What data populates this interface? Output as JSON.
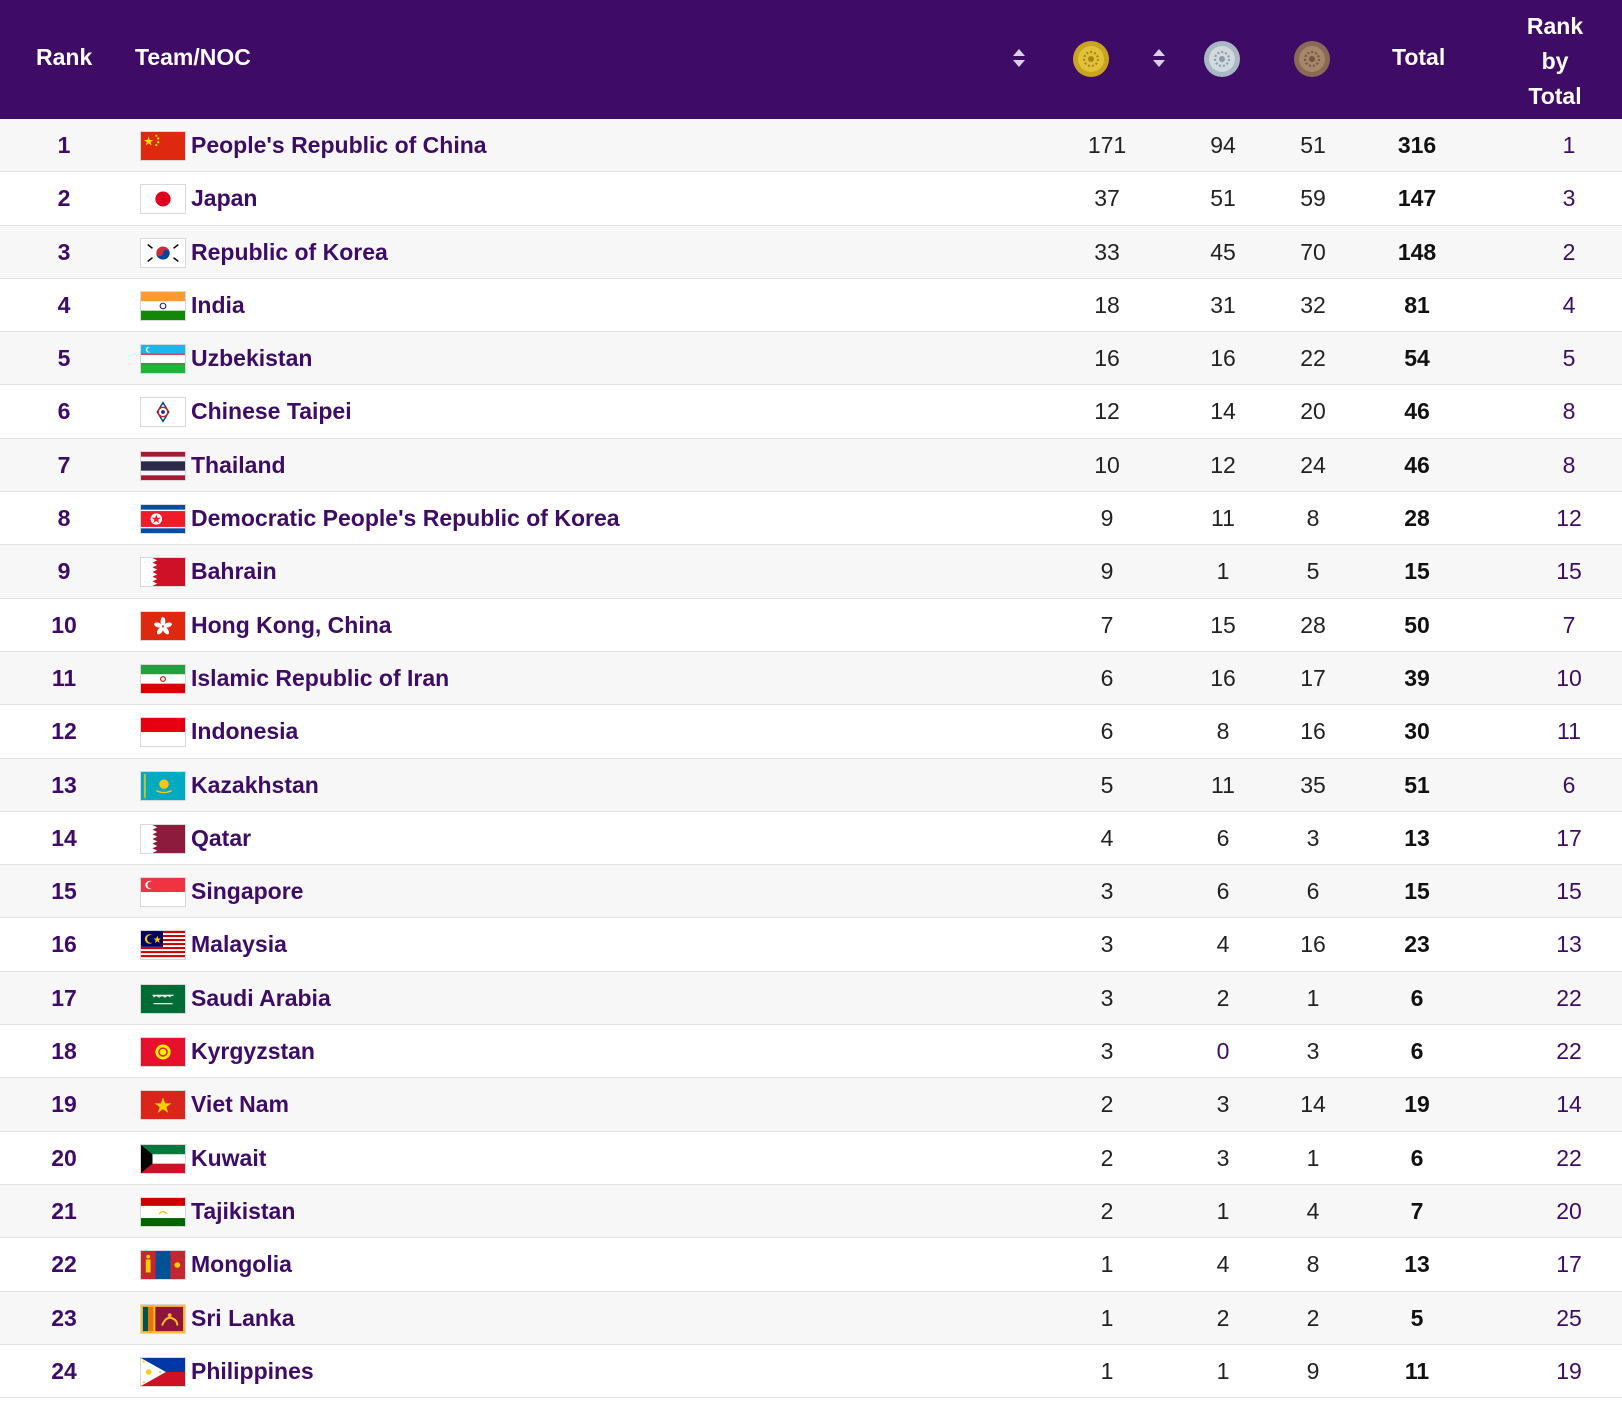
{
  "header": {
    "rank": "Rank",
    "team": "Team/NOC",
    "total": "Total",
    "rank_by_total": [
      "Rank",
      "by",
      "Total"
    ],
    "gold_icon": "gold-medal-icon",
    "silver_icon": "silver-medal-icon",
    "bronze_icon": "bronze-medal-icon",
    "sort_icon": "sort-icon"
  },
  "colors": {
    "header_bg": "#3e0c66",
    "accent_text": "#3e0c66",
    "row_alt": "#f7f7f7"
  },
  "rows": [
    {
      "rank": "1",
      "flag": "flag-china",
      "name": "People's Republic of China",
      "gold": "171",
      "silver": "94",
      "bronze": "51",
      "total": "316",
      "rank_by_total": "1"
    },
    {
      "rank": "2",
      "flag": "flag-japan",
      "name": "Japan",
      "gold": "37",
      "silver": "51",
      "bronze": "59",
      "total": "147",
      "rank_by_total": "3"
    },
    {
      "rank": "3",
      "flag": "flag-korea",
      "name": "Republic of Korea",
      "gold": "33",
      "silver": "45",
      "bronze": "70",
      "total": "148",
      "rank_by_total": "2"
    },
    {
      "rank": "4",
      "flag": "flag-india",
      "name": "India",
      "gold": "18",
      "silver": "31",
      "bronze": "32",
      "total": "81",
      "rank_by_total": "4"
    },
    {
      "rank": "5",
      "flag": "flag-uzbekistan",
      "name": "Uzbekistan",
      "gold": "16",
      "silver": "16",
      "bronze": "22",
      "total": "54",
      "rank_by_total": "5"
    },
    {
      "rank": "6",
      "flag": "flag-chinese-taipei",
      "name": "Chinese Taipei",
      "gold": "12",
      "silver": "14",
      "bronze": "20",
      "total": "46",
      "rank_by_total": "8"
    },
    {
      "rank": "7",
      "flag": "flag-thailand",
      "name": "Thailand",
      "gold": "10",
      "silver": "12",
      "bronze": "24",
      "total": "46",
      "rank_by_total": "8"
    },
    {
      "rank": "8",
      "flag": "flag-dpr-korea",
      "name": "Democratic People's Republic of Korea",
      "gold": "9",
      "silver": "11",
      "bronze": "8",
      "total": "28",
      "rank_by_total": "12"
    },
    {
      "rank": "9",
      "flag": "flag-bahrain",
      "name": "Bahrain",
      "gold": "9",
      "silver": "1",
      "bronze": "5",
      "total": "15",
      "rank_by_total": "15"
    },
    {
      "rank": "10",
      "flag": "flag-hong-kong",
      "name": "Hong Kong, China",
      "gold": "7",
      "silver": "15",
      "bronze": "28",
      "total": "50",
      "rank_by_total": "7"
    },
    {
      "rank": "11",
      "flag": "flag-iran",
      "name": "Islamic Republic of Iran",
      "gold": "6",
      "silver": "16",
      "bronze": "17",
      "total": "39",
      "rank_by_total": "10"
    },
    {
      "rank": "12",
      "flag": "flag-indonesia",
      "name": "Indonesia",
      "gold": "6",
      "silver": "8",
      "bronze": "16",
      "total": "30",
      "rank_by_total": "11"
    },
    {
      "rank": "13",
      "flag": "flag-kazakhstan",
      "name": "Kazakhstan",
      "gold": "5",
      "silver": "11",
      "bronze": "35",
      "total": "51",
      "rank_by_total": "6"
    },
    {
      "rank": "14",
      "flag": "flag-qatar",
      "name": "Qatar",
      "gold": "4",
      "silver": "6",
      "bronze": "3",
      "total": "13",
      "rank_by_total": "17"
    },
    {
      "rank": "15",
      "flag": "flag-singapore",
      "name": "Singapore",
      "gold": "3",
      "silver": "6",
      "bronze": "6",
      "total": "15",
      "rank_by_total": "15"
    },
    {
      "rank": "16",
      "flag": "flag-malaysia",
      "name": "Malaysia",
      "gold": "3",
      "silver": "4",
      "bronze": "16",
      "total": "23",
      "rank_by_total": "13"
    },
    {
      "rank": "17",
      "flag": "flag-saudi-arabia",
      "name": "Saudi Arabia",
      "gold": "3",
      "silver": "2",
      "bronze": "1",
      "total": "6",
      "rank_by_total": "22"
    },
    {
      "rank": "18",
      "flag": "flag-kyrgyzstan",
      "name": "Kyrgyzstan",
      "gold": "3",
      "silver": "0",
      "bronze": "3",
      "total": "6",
      "rank_by_total": "22"
    },
    {
      "rank": "19",
      "flag": "flag-viet-nam",
      "name": "Viet Nam",
      "gold": "2",
      "silver": "3",
      "bronze": "14",
      "total": "19",
      "rank_by_total": "14"
    },
    {
      "rank": "20",
      "flag": "flag-kuwait",
      "name": "Kuwait",
      "gold": "2",
      "silver": "3",
      "bronze": "1",
      "total": "6",
      "rank_by_total": "22"
    },
    {
      "rank": "21",
      "flag": "flag-tajikistan",
      "name": "Tajikistan",
      "gold": "2",
      "silver": "1",
      "bronze": "4",
      "total": "7",
      "rank_by_total": "20"
    },
    {
      "rank": "22",
      "flag": "flag-mongolia",
      "name": "Mongolia",
      "gold": "1",
      "silver": "4",
      "bronze": "8",
      "total": "13",
      "rank_by_total": "17"
    },
    {
      "rank": "23",
      "flag": "flag-sri-lanka",
      "name": "Sri Lanka",
      "gold": "1",
      "silver": "2",
      "bronze": "2",
      "total": "5",
      "rank_by_total": "25"
    },
    {
      "rank": "24",
      "flag": "flag-philippines",
      "name": "Philippines",
      "gold": "1",
      "silver": "1",
      "bronze": "9",
      "total": "11",
      "rank_by_total": "19"
    }
  ]
}
